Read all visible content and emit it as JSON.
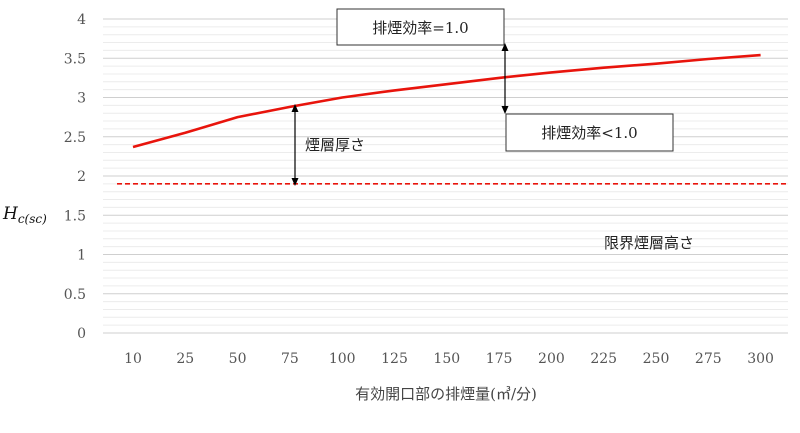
{
  "chart_data": {
    "type": "line",
    "categories": [
      "10",
      "25",
      "50",
      "75",
      "100",
      "125",
      "150",
      "175",
      "200",
      "225",
      "250",
      "275",
      "300"
    ],
    "series": [
      {
        "style": "solid",
        "color": "#e8140c",
        "values": [
          2.37,
          2.55,
          2.75,
          2.88,
          3.0,
          3.09,
          3.17,
          3.25,
          3.32,
          3.38,
          3.43,
          3.49,
          3.54
        ]
      },
      {
        "style": "dashed",
        "color": "#e8140c",
        "values": [
          1.9,
          1.9,
          1.9,
          1.9,
          1.9,
          1.9,
          1.9,
          1.9,
          1.9,
          1.9,
          1.9,
          1.9,
          1.9
        ]
      }
    ],
    "ylim": [
      0,
      4
    ],
    "yticks": [
      "0",
      "0.5",
      "1",
      "1.5",
      "2",
      "2.5",
      "3",
      "3.5",
      "4"
    ],
    "ylabel": "H",
    "ylabel_sub": "c(sc)",
    "xlabel": "有効開口部の排煙量(㎥/分)",
    "grid": true,
    "annotations": {
      "box_top": "排煙効率=1.0",
      "box_bottom": "排煙効率<1.0",
      "thickness": "煙層厚さ",
      "critical": "限界煙層高さ"
    }
  }
}
